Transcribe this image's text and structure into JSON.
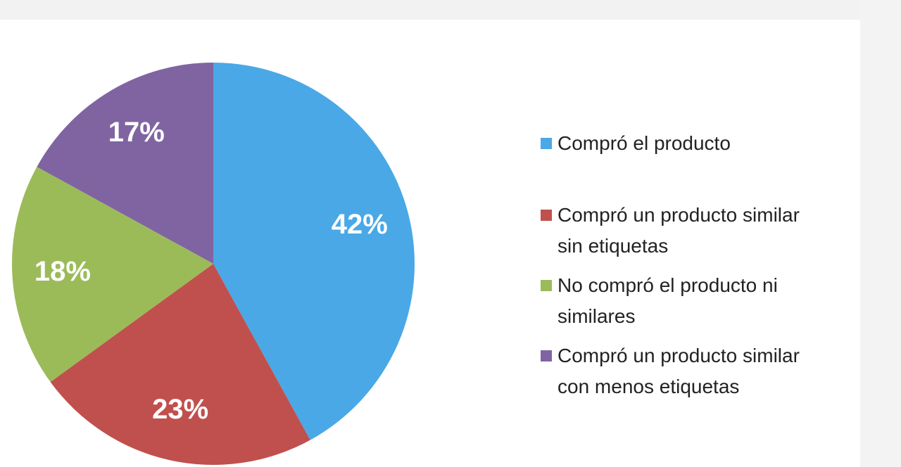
{
  "chart_data": {
    "type": "pie",
    "categories": [
      "Compró el producto",
      "Compró un producto similar sin etiquetas",
      "No compró el producto ni similares",
      "Compró un producto similar con menos etiquetas"
    ],
    "values": [
      42,
      23,
      18,
      17
    ],
    "value_labels": [
      "42%",
      "23%",
      "18%",
      "17%"
    ],
    "colors": [
      "#4aa8e6",
      "#c0504d",
      "#9bbb59",
      "#8064a2"
    ],
    "legend": "right"
  }
}
